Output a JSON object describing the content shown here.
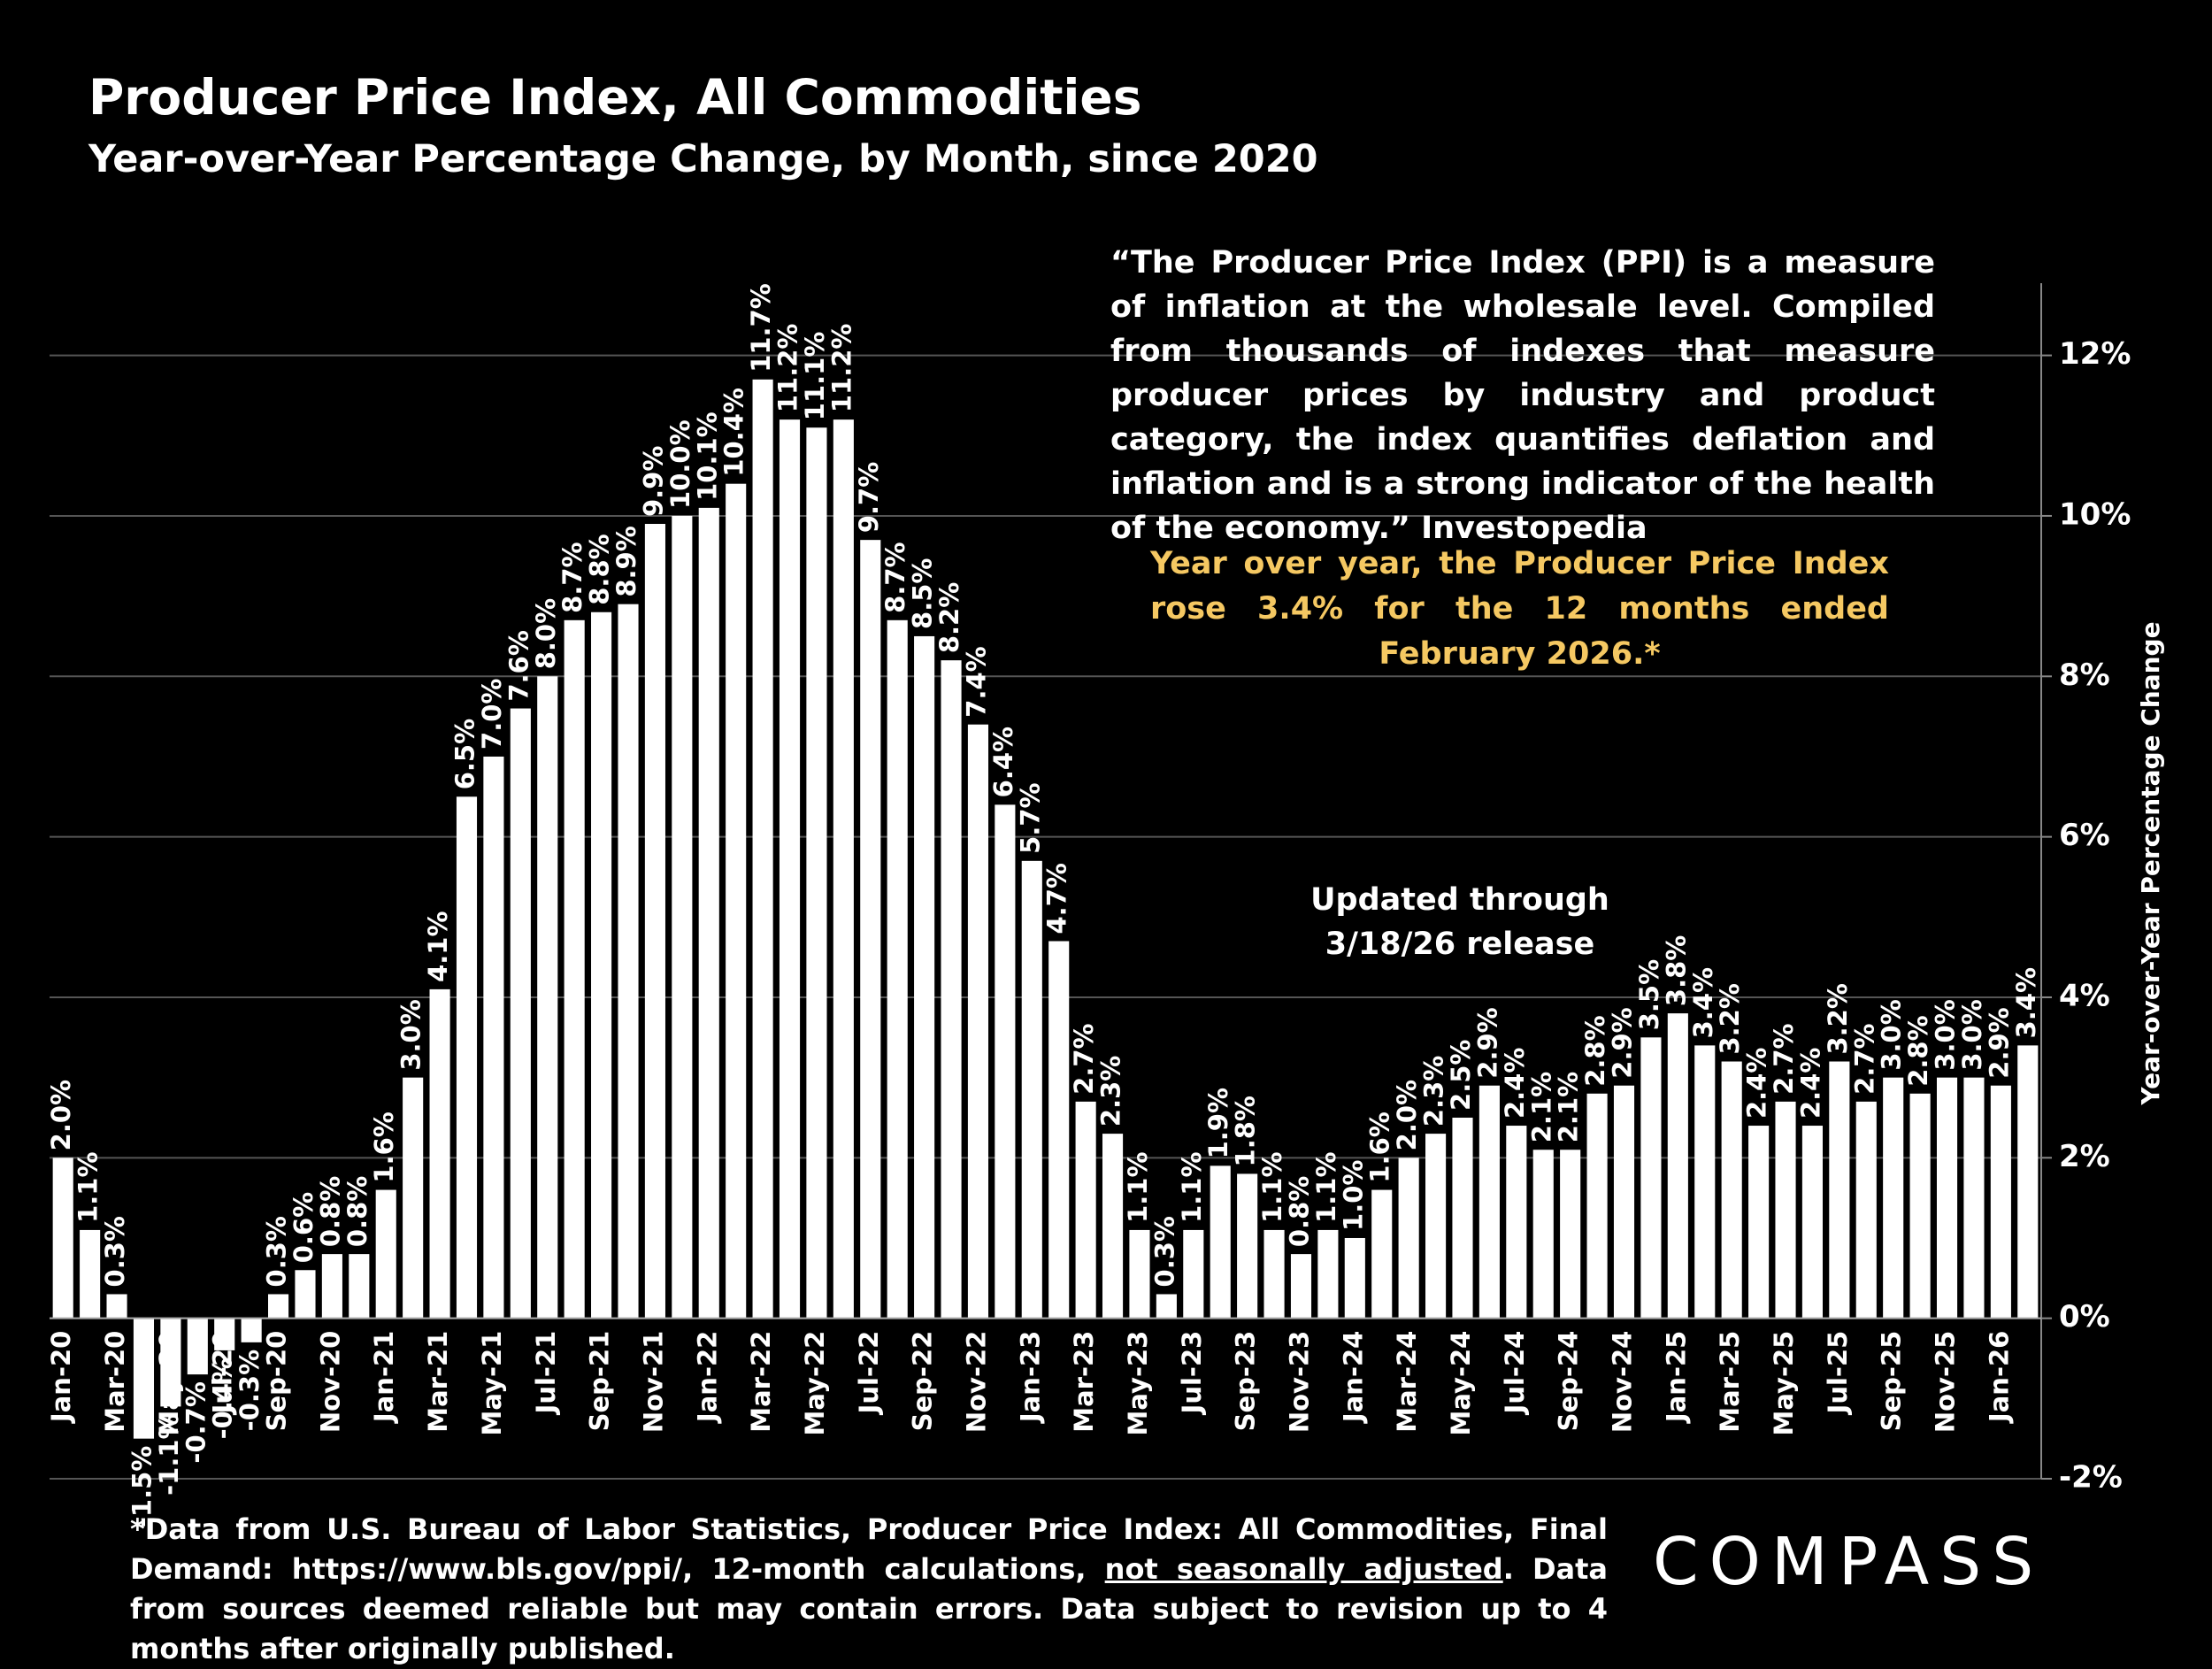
{
  "chart_data": {
    "type": "bar",
    "title": "Producer Price Index, All Commodities",
    "subtitle": "Year-over-Year Percentage Change, by Month, since 2020",
    "y_axis_label": "Year-over-Year Percentage Change",
    "quote": "“The Producer Price Index (PPI) is a measure of inflation at the wholesale level. Compiled from thousands of indexes that measure producer prices by industry and product category,  the index quantifies deflation and inflation and is a strong indicator of the health of the economy.” Investopedia",
    "highlight": "Year over year, the Producer Price Index rose 3.4% for the 12 months ended February 2026.*",
    "update_note": "Updated through 3/18/26 release",
    "footnote": {
      "before": "*Data from U.S. Bureau of Labor Statistics, Producer Price Index: All Commodities, Final Demand: https://www.bls.gov/ppi/, 12-month calculations, ",
      "underlined": "not seasonally adjusted",
      "after": ". Data from sources deemed reliable but may contain errors. Data subject to revision up to 4 months after originally published."
    },
    "logo": "COMPASS",
    "color": "#ffffff",
    "grid": true,
    "categories": [
      "Jan-20",
      null,
      "Mar-20",
      null,
      "May-20",
      null,
      "Jul-20",
      null,
      "Sep-20",
      null,
      "Nov-20",
      null,
      "Jan-21",
      null,
      "Mar-21",
      null,
      "May-21",
      null,
      "Jul-21",
      null,
      "Sep-21",
      null,
      "Nov-21",
      null,
      "Jan-22",
      null,
      "Mar-22",
      null,
      "May-22",
      null,
      "Jul-22",
      null,
      "Sep-22",
      null,
      "Nov-22",
      null,
      "Jan-23",
      null,
      "Mar-23",
      null,
      "May-23",
      null,
      "Jul-23",
      null,
      "Sep-23",
      null,
      "Nov-23",
      null,
      "Jan-24",
      null,
      "Mar-24",
      null,
      "May-24",
      null,
      "Jul-24",
      null,
      "Sep-24",
      null,
      "Nov-24",
      null,
      "Jan-25",
      null,
      "Mar-25",
      null,
      "May-25",
      null,
      "Jul-25",
      null,
      "Sep-25",
      null,
      "Nov-25",
      null,
      "Jan-26",
      null
    ],
    "values": [
      2.0,
      1.1,
      0.3,
      -1.5,
      -1.1,
      -0.7,
      -0.4,
      -0.3,
      0.3,
      0.6,
      0.8,
      0.8,
      1.6,
      3.0,
      4.1,
      6.5,
      7.0,
      7.6,
      8.0,
      8.7,
      8.8,
      8.9,
      9.9,
      10.0,
      10.1,
      10.4,
      11.7,
      11.2,
      11.1,
      11.2,
      9.7,
      8.7,
      8.5,
      8.2,
      7.4,
      6.4,
      5.7,
      4.7,
      2.7,
      2.3,
      1.1,
      0.3,
      1.1,
      1.9,
      1.8,
      1.1,
      0.8,
      1.1,
      1.0,
      1.6,
      2.0,
      2.3,
      2.5,
      2.9,
      2.4,
      2.1,
      2.1,
      2.8,
      2.9,
      3.5,
      3.8,
      3.4,
      3.2,
      2.4,
      2.7,
      2.4,
      3.2,
      2.7,
      3.0,
      2.8,
      3.0,
      3.0,
      2.9,
      3.4
    ],
    "value_labels": [
      "2.0%",
      "1.1%",
      "0.3%",
      "-1.5%",
      "-1.1%",
      "-0.7%",
      "-0.4%",
      "-0.3%",
      "0.3%",
      "0.6%",
      "0.8%",
      "0.8%",
      "1.6%",
      "3.0%",
      "4.1%",
      "6.5%",
      "7.0%",
      "7.6%",
      "8.0%",
      "8.7%",
      "8.8%",
      "8.9%",
      "9.9%",
      "10.0%",
      "10.1%",
      "10.4%",
      "11.7%",
      "11.2%",
      "11.1%",
      "11.2%",
      "9.7%",
      "8.7%",
      "8.5%",
      "8.2%",
      "7.4%",
      "6.4%",
      "5.7%",
      "4.7%",
      "2.7%",
      "2.3%",
      "1.1%",
      "0.3%",
      "1.1%",
      "1.9%",
      "1.8%",
      "1.1%",
      "0.8%",
      "1.1%",
      "1.0%",
      "1.6%",
      "2.0%",
      "2.3%",
      "2.5%",
      "2.9%",
      "2.4%",
      "2.1%",
      "2.1%",
      "2.8%",
      "2.9%",
      "3.5%",
      "3.8%",
      "3.4%",
      "3.2%",
      "2.4%",
      "2.7%",
      "2.4%",
      "3.2%",
      "2.7%",
      "3.0%",
      "2.8%",
      "3.0%",
      "3.0%",
      "2.9%",
      "3.4%"
    ],
    "ylim": [
      -2,
      12.9
    ],
    "yticks": [
      {
        "value": -2,
        "label": "-2%"
      },
      {
        "value": 0,
        "label": "0%"
      },
      {
        "value": 2,
        "label": "2%"
      },
      {
        "value": 4,
        "label": "4%"
      },
      {
        "value": 6,
        "label": "6%"
      },
      {
        "value": 8,
        "label": "8%"
      },
      {
        "value": 10,
        "label": "10%"
      },
      {
        "value": 12,
        "label": "12%"
      }
    ]
  }
}
